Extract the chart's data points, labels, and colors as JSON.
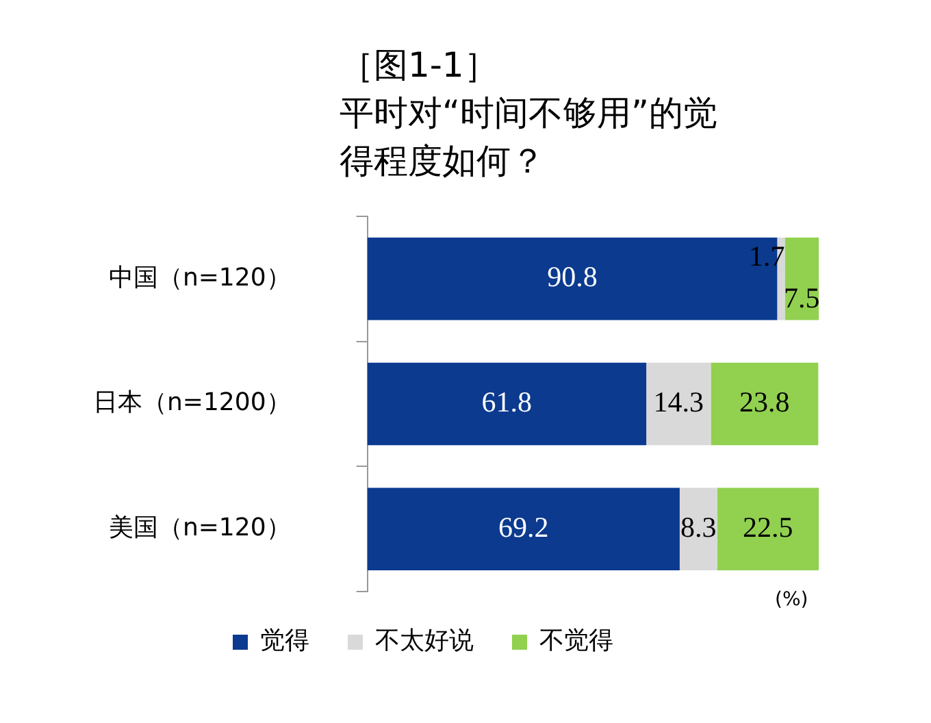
{
  "chart_data": {
    "type": "bar",
    "orientation": "horizontal",
    "stacked": true,
    "title": "［图1-1］",
    "subtitle": "平时对“时间不够用”的觉得程度如何？",
    "categories": [
      "中国（n=120）",
      "日本（n=1200）",
      "美国（n=120）"
    ],
    "series": [
      {
        "name": "觉得",
        "color": "#0b3a8f",
        "values": [
          90.8,
          61.8,
          69.2
        ]
      },
      {
        "name": "不太好说",
        "color": "#d9d9d9",
        "values": [
          1.7,
          14.3,
          8.3
        ]
      },
      {
        "name": "不觉得",
        "color": "#92d050",
        "values": [
          7.5,
          23.8,
          22.5
        ]
      }
    ],
    "xlim": [
      0,
      100
    ],
    "tick_labels": "y",
    "grid": false,
    "data_labels": true,
    "legend": "bottom",
    "annotations": [
      "(%)"
    ]
  }
}
